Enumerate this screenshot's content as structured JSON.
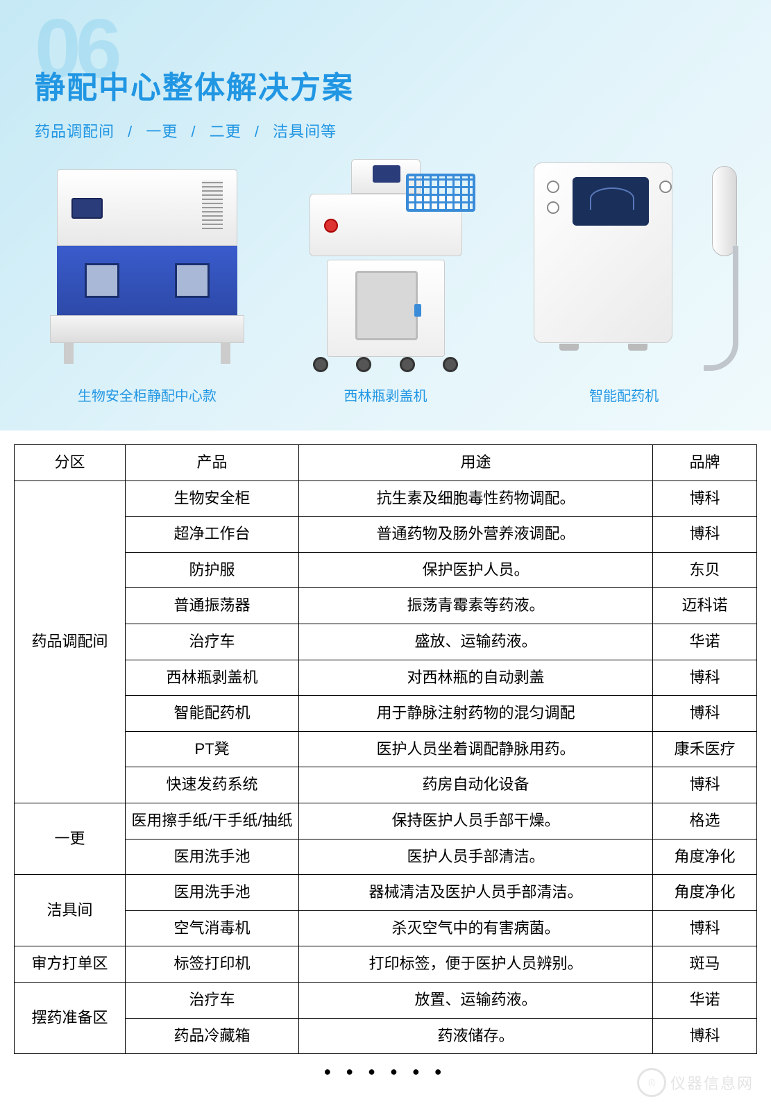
{
  "section_number": "06",
  "title": "静配中心整体解决方案",
  "subtitle_parts": [
    "药品调配间",
    "一更",
    "二更",
    "洁具间等"
  ],
  "subtitle_sep": "/",
  "products": [
    {
      "label": "生物安全柜静配中心款"
    },
    {
      "label": "西林瓶剥盖机"
    },
    {
      "label": "智能配药机"
    }
  ],
  "table": {
    "columns": [
      "分区",
      "产品",
      "用途",
      "品牌"
    ],
    "groups": [
      {
        "zone": "药品调配间",
        "rows": [
          {
            "product": "生物安全柜",
            "use": "抗生素及细胞毒性药物调配。",
            "brand": "博科"
          },
          {
            "product": "超净工作台",
            "use": "普通药物及肠外营养液调配。",
            "brand": "博科"
          },
          {
            "product": "防护服",
            "use": "保护医护人员。",
            "brand": "东贝"
          },
          {
            "product": "普通振荡器",
            "use": "振荡青霉素等药液。",
            "brand": "迈科诺"
          },
          {
            "product": "治疗车",
            "use": "盛放、运输药液。",
            "brand": "华诺"
          },
          {
            "product": "西林瓶剥盖机",
            "use": "对西林瓶的自动剥盖",
            "brand": "博科"
          },
          {
            "product": "智能配药机",
            "use": "用于静脉注射药物的混匀调配",
            "brand": "博科"
          },
          {
            "product": "PT凳",
            "use": "医护人员坐着调配静脉用药。",
            "brand": "康禾医疗"
          },
          {
            "product": "快速发药系统",
            "use": "药房自动化设备",
            "brand": "博科"
          }
        ]
      },
      {
        "zone": "一更",
        "rows": [
          {
            "product": "医用擦手纸/干手纸/抽纸",
            "use": "保持医护人员手部干燥。",
            "brand": "格选"
          },
          {
            "product": "医用洗手池",
            "use": "医护人员手部清洁。",
            "brand": "角度净化"
          }
        ]
      },
      {
        "zone": "洁具间",
        "rows": [
          {
            "product": "医用洗手池",
            "use": "器械清洁及医护人员手部清洁。",
            "brand": "角度净化"
          },
          {
            "product": "空气消毒机",
            "use": "杀灭空气中的有害病菌。",
            "brand": "博科"
          }
        ]
      },
      {
        "zone": "审方打单区",
        "rows": [
          {
            "product": "标签打印机",
            "use": "打印标签，便于医护人员辨别。",
            "brand": "斑马"
          }
        ]
      },
      {
        "zone": "摆药准备区",
        "rows": [
          {
            "product": "治疗车",
            "use": "放置、运输药液。",
            "brand": "华诺"
          },
          {
            "product": "药品冷藏箱",
            "use": "药液储存。",
            "brand": "博科"
          }
        ]
      }
    ]
  },
  "dots": "● ● ● ● ● ●",
  "watermark": "仪器信息网",
  "colors": {
    "primary": "#2196e3",
    "hero_grad_start": "#c5e9f5",
    "hero_grad_end": "#f0fafc",
    "number_tint": "rgba(120,200,235,0.35)",
    "border": "#000000"
  }
}
